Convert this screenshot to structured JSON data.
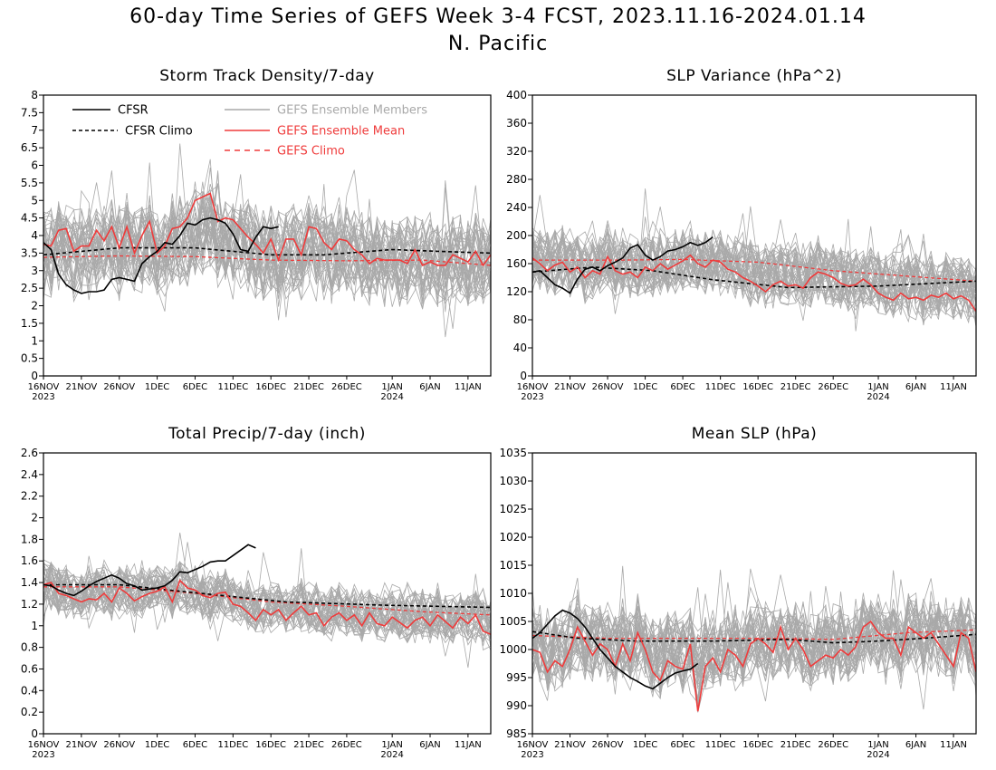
{
  "title": {
    "line1": "60-day Time Series of GEFS Week 3-4 FCST, 2023.11.16-2024.01.14",
    "line2": "N. Pacific"
  },
  "legend": {
    "cfsr": "CFSR",
    "cfsr_climo": "CFSR Climo",
    "members": "GEFS Ensemble Members",
    "ens_mean": "GEFS Ensemble Mean",
    "gefs_climo": "GEFS Climo"
  },
  "colors": {
    "members": "#a9a9a9",
    "cfsr": "#000000",
    "gefs": "#ef3b3b"
  },
  "x_axis": {
    "tick_labels": [
      "16NOV",
      "21NOV",
      "26NOV",
      "1DEC",
      "6DEC",
      "11DEC",
      "16DEC",
      "21DEC",
      "26DEC",
      "1JAN",
      "6JAN",
      "11JAN"
    ],
    "tick_days": [
      0,
      5,
      10,
      15,
      20,
      25,
      30,
      35,
      40,
      46,
      51,
      56
    ],
    "year_labels": [
      {
        "label": "2023",
        "day": 0
      },
      {
        "label": "2024",
        "day": 46
      }
    ],
    "days": 59
  },
  "chart_data": [
    {
      "type": "line",
      "title": "Storm Track Density/7-day",
      "ylim": [
        0,
        8
      ],
      "yticks": [
        "0",
        "0.5",
        "1",
        "1.5",
        "2",
        "2.5",
        "3",
        "3.5",
        "4",
        "4.5",
        "5",
        "5.5",
        "6",
        "6.5",
        "7",
        "7.5",
        "8"
      ],
      "members": {
        "count": 40,
        "spread": 0.85,
        "spike": 2.0
      },
      "series": [
        {
          "name": "CFSR",
          "key": "cfsr",
          "values": [
            3.8,
            3.6,
            2.9,
            2.6,
            2.45,
            2.35,
            2.4,
            2.4,
            2.45,
            2.75,
            2.8,
            2.75,
            2.7,
            3.2,
            3.4,
            3.55,
            3.8,
            3.75,
            4.0,
            4.35,
            4.3,
            4.45,
            4.5,
            4.45,
            4.35,
            4.05,
            3.6,
            3.55,
            3.95,
            4.25,
            4.2,
            4.25
          ]
        },
        {
          "name": "CFSR Climo",
          "key": "cfsr_climo",
          "values": [
            [
              0,
              3.45
            ],
            [
              10,
              3.65
            ],
            [
              20,
              3.65
            ],
            [
              30,
              3.45
            ],
            [
              37,
              3.45
            ],
            [
              46,
              3.6
            ],
            [
              52,
              3.55
            ],
            [
              59,
              3.5
            ]
          ]
        },
        {
          "name": "GEFS Ensemble Mean",
          "key": "ens_mean",
          "values": [
            3.75,
            3.7,
            4.15,
            4.2,
            3.55,
            3.7,
            3.7,
            4.15,
            3.85,
            4.25,
            3.65,
            4.25,
            3.5,
            4.0,
            4.4,
            3.5,
            3.7,
            4.2,
            4.25,
            4.5,
            5.0,
            5.1,
            5.2,
            4.4,
            4.5,
            4.45,
            4.2,
            3.95,
            3.75,
            3.5,
            3.9,
            3.3,
            3.9,
            3.9,
            3.45,
            4.25,
            4.2,
            3.8,
            3.6,
            3.9,
            3.85,
            3.6,
            3.45,
            3.2,
            3.35,
            3.3,
            3.3,
            3.3,
            3.2,
            3.6,
            3.15,
            3.25,
            3.15,
            3.15,
            3.45,
            3.35,
            3.25,
            3.55,
            3.15,
            3.45
          ]
        },
        {
          "name": "GEFS Climo",
          "key": "gefs_climo",
          "values": [
            [
              0,
              3.38
            ],
            [
              10,
              3.42
            ],
            [
              20,
              3.4
            ],
            [
              30,
              3.3
            ],
            [
              40,
              3.28
            ],
            [
              50,
              3.3
            ],
            [
              59,
              3.15
            ]
          ]
        }
      ]
    },
    {
      "type": "line",
      "title": "SLP Variance (hPa^2)",
      "ylim": [
        0,
        400
      ],
      "yticks": [
        "0",
        "40",
        "80",
        "120",
        "160",
        "200",
        "240",
        "280",
        "320",
        "360",
        "400"
      ],
      "members": {
        "count": 40,
        "spread": 30,
        "spike": 90
      },
      "series": [
        {
          "name": "CFSR",
          "key": "cfsr",
          "values": [
            148,
            150,
            140,
            130,
            125,
            118,
            138,
            152,
            155,
            150,
            157,
            162,
            168,
            182,
            187,
            172,
            165,
            170,
            178,
            180,
            184,
            190,
            186,
            190,
            198
          ]
        },
        {
          "name": "CFSR Climo",
          "key": "cfsr_climo",
          "values": [
            [
              0,
              148
            ],
            [
              8,
              155
            ],
            [
              16,
              150
            ],
            [
              24,
              137
            ],
            [
              34,
              126
            ],
            [
              46,
              128
            ],
            [
              59,
              135
            ]
          ]
        },
        {
          "name": "GEFS Ensemble Mean",
          "key": "ens_mean",
          "values": [
            168,
            160,
            150,
            158,
            162,
            148,
            155,
            140,
            150,
            145,
            170,
            150,
            145,
            148,
            140,
            155,
            150,
            160,
            152,
            158,
            164,
            172,
            160,
            155,
            165,
            162,
            152,
            148,
            140,
            135,
            128,
            120,
            130,
            135,
            128,
            130,
            125,
            140,
            148,
            145,
            140,
            132,
            128,
            130,
            138,
            130,
            118,
            112,
            108,
            118,
            110,
            112,
            108,
            115,
            112,
            118,
            110,
            114,
            108,
            92
          ]
        },
        {
          "name": "GEFS Climo",
          "key": "gefs_climo",
          "values": [
            [
              0,
              165
            ],
            [
              12,
              165
            ],
            [
              20,
              166
            ],
            [
              30,
              162
            ],
            [
              40,
              150
            ],
            [
              50,
              142
            ],
            [
              59,
              135
            ]
          ]
        }
      ]
    },
    {
      "type": "line",
      "title": "Total Precip/7-day (inch)",
      "ylim": [
        0,
        2.6
      ],
      "yticks": [
        "0",
        "0.2",
        "0.4",
        "0.6",
        "0.8",
        "1",
        "1.2",
        "1.4",
        "1.6",
        "1.8",
        "2",
        "2.2",
        "2.4",
        "2.6"
      ],
      "members": {
        "count": 40,
        "spread": 0.15,
        "spike": 0.45
      },
      "series": [
        {
          "name": "CFSR",
          "key": "cfsr",
          "values": [
            1.38,
            1.37,
            1.33,
            1.3,
            1.28,
            1.32,
            1.37,
            1.41,
            1.44,
            1.47,
            1.44,
            1.39,
            1.37,
            1.33,
            1.34,
            1.35,
            1.37,
            1.42,
            1.5,
            1.49,
            1.52,
            1.55,
            1.59,
            1.6,
            1.6,
            1.65,
            1.7,
            1.75,
            1.72
          ]
        },
        {
          "name": "CFSR Climo",
          "key": "cfsr_climo",
          "values": [
            [
              0,
              1.38
            ],
            [
              10,
              1.38
            ],
            [
              18,
              1.32
            ],
            [
              25,
              1.27
            ],
            [
              32,
              1.22
            ],
            [
              45,
              1.19
            ],
            [
              59,
              1.17
            ]
          ]
        },
        {
          "name": "GEFS Ensemble Mean",
          "key": "ens_mean",
          "values": [
            1.38,
            1.4,
            1.3,
            1.28,
            1.25,
            1.22,
            1.25,
            1.24,
            1.3,
            1.22,
            1.35,
            1.3,
            1.23,
            1.27,
            1.3,
            1.32,
            1.36,
            1.22,
            1.42,
            1.35,
            1.33,
            1.28,
            1.26,
            1.3,
            1.31,
            1.2,
            1.18,
            1.12,
            1.05,
            1.15,
            1.1,
            1.15,
            1.05,
            1.12,
            1.18,
            1.1,
            1.12,
            1.0,
            1.08,
            1.12,
            1.05,
            1.1,
            1.0,
            1.12,
            1.02,
            1.0,
            1.08,
            1.03,
            0.98,
            1.05,
            1.08,
            1.0,
            1.1,
            1.04,
            0.98,
            1.08,
            1.02,
            1.1,
            0.95,
            0.92
          ]
        },
        {
          "name": "GEFS Climo",
          "key": "gefs_climo",
          "values": [
            [
              0,
              1.36
            ],
            [
              10,
              1.36
            ],
            [
              20,
              1.3
            ],
            [
              30,
              1.22
            ],
            [
              40,
              1.18
            ],
            [
              50,
              1.13
            ],
            [
              59,
              1.1
            ]
          ]
        }
      ]
    },
    {
      "type": "line",
      "title": "Mean SLP (hPa)",
      "ylim": [
        985,
        1035
      ],
      "yticks": [
        "985",
        "990",
        "995",
        "1000",
        "1005",
        "1010",
        "1015",
        "1020",
        "1025",
        "1030",
        "1035"
      ],
      "members": {
        "count": 40,
        "spread": 4.5,
        "spike": 12
      },
      "series": [
        {
          "name": "CFSR",
          "key": "cfsr",
          "values": [
            1002,
            1003,
            1004.5,
            1006,
            1007,
            1006.5,
            1005.5,
            1004,
            1002,
            1000,
            998.5,
            997,
            996,
            995,
            994.3,
            993.5,
            993,
            994,
            995,
            995.8,
            996.2,
            996.5,
            997.5
          ]
        },
        {
          "name": "CFSR Climo",
          "key": "cfsr_climo",
          "values": [
            [
              0,
              1003.2
            ],
            [
              6,
              1002
            ],
            [
              14,
              1001.5
            ],
            [
              24,
              1001.5
            ],
            [
              34,
              1001.8
            ],
            [
              40,
              1001.2
            ],
            [
              46,
              1001.5
            ],
            [
              52,
              1002
            ],
            [
              59,
              1002.7
            ]
          ]
        },
        {
          "name": "GEFS Ensemble Mean",
          "key": "ens_mean",
          "values": [
            1000,
            999.5,
            996,
            998,
            997,
            1000,
            1004,
            1001.5,
            999,
            1001,
            1000,
            997,
            1001,
            998,
            1003,
            1000,
            996,
            994.5,
            998,
            997,
            996.5,
            1001,
            989,
            997,
            998.5,
            996,
            1000,
            999,
            997,
            1001,
            1002,
            1001,
            999.5,
            1004,
            1000,
            1002,
            1000,
            997,
            998,
            999,
            998.5,
            1000,
            999,
            1000.5,
            1004,
            1005,
            1003,
            1002,
            1002,
            999,
            1004,
            1003,
            1002,
            1003,
            1001,
            999,
            997,
            1003,
            1002,
            996
          ]
        },
        {
          "name": "GEFS Climo",
          "key": "gefs_climo",
          "values": [
            [
              0,
              1002.5
            ],
            [
              10,
              1002
            ],
            [
              20,
              1002
            ],
            [
              30,
              1002
            ],
            [
              40,
              1001.8
            ],
            [
              50,
              1003
            ],
            [
              59,
              1003.5
            ]
          ]
        }
      ]
    }
  ]
}
